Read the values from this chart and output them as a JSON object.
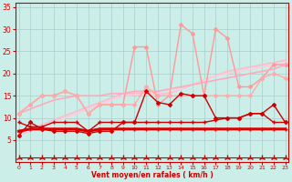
{
  "xlabel": "Vent moyen/en rafales ( km/h )",
  "background_color": "#cceee8",
  "grid_color": "#aacccc",
  "x": [
    0,
    1,
    2,
    3,
    4,
    5,
    6,
    7,
    8,
    9,
    10,
    11,
    12,
    13,
    14,
    15,
    16,
    17,
    18,
    19,
    20,
    21,
    22,
    23
  ],
  "lines": [
    {
      "y": [
        6.5,
        7.5,
        8.5,
        9.5,
        10.5,
        11.5,
        12.5,
        13.5,
        14.5,
        15.5,
        15.5,
        15.5,
        15.5,
        15.5,
        16.5,
        17.5,
        18.5,
        19.5,
        20.5,
        21.0,
        21.5,
        22.0,
        22.5,
        23.0
      ],
      "color": "#ffbbcc",
      "lw": 1.2,
      "marker": null,
      "ms": 0
    },
    {
      "y": [
        6.0,
        7.0,
        8.0,
        9.0,
        10.0,
        11.0,
        12.0,
        13.0,
        14.0,
        15.0,
        15.2,
        15.4,
        15.6,
        15.8,
        16.5,
        17.5,
        18.5,
        19.5,
        20.0,
        20.5,
        21.0,
        21.5,
        22.0,
        22.5
      ],
      "color": "#ffccdd",
      "lw": 1.2,
      "marker": null,
      "ms": 0
    },
    {
      "y": [
        11,
        13,
        15,
        15,
        16,
        15,
        11,
        13,
        13,
        13,
        26,
        26,
        13,
        15,
        31,
        29,
        15,
        30,
        28,
        17,
        17,
        19,
        22,
        22
      ],
      "color": "#ff9999",
      "lw": 1.0,
      "marker": "D",
      "ms": 2
    },
    {
      "y": [
        11,
        12,
        13,
        14,
        14.5,
        15,
        15,
        15,
        15.5,
        15.5,
        16,
        16,
        16,
        16.5,
        17,
        17.5,
        18,
        18.5,
        19,
        19.5,
        20,
        20.5,
        21,
        22
      ],
      "color": "#ffaabb",
      "lw": 1.2,
      "marker": null,
      "ms": 0
    },
    {
      "y": [
        11,
        13,
        15,
        15,
        16,
        15,
        11,
        13,
        13,
        13,
        13,
        17,
        15,
        15,
        15,
        15,
        15,
        15,
        15,
        15,
        15,
        19,
        20,
        19
      ],
      "color": "#ffaaaa",
      "lw": 1.0,
      "marker": "D",
      "ms": 2
    },
    {
      "y": [
        6,
        9,
        7.5,
        7,
        7,
        7,
        6.5,
        7,
        7,
        9,
        9,
        16,
        13.5,
        13,
        15.5,
        15,
        15,
        10,
        10,
        10,
        11,
        11,
        13,
        9
      ],
      "color": "#cc0000",
      "lw": 1.0,
      "marker": "D",
      "ms": 2
    },
    {
      "y": [
        7,
        7.5,
        7.5,
        7.5,
        7.5,
        7.5,
        7,
        7.5,
        7.5,
        7.5,
        7.5,
        7.5,
        7.5,
        7.5,
        7.5,
        7.5,
        7.5,
        7.5,
        7.5,
        7.5,
        7.5,
        7.5,
        7.5,
        7.5
      ],
      "color": "#dd0000",
      "lw": 2.2,
      "marker": "+",
      "ms": 3
    },
    {
      "y": [
        9,
        8,
        8,
        9,
        9,
        9,
        7,
        9,
        9,
        9,
        9,
        9,
        9,
        9,
        9,
        9,
        9,
        9.5,
        10,
        10,
        11,
        11,
        9,
        9
      ],
      "color": "#cc0000",
      "lw": 1.0,
      "marker": "+",
      "ms": 3
    },
    {
      "y": [
        1,
        1,
        1,
        1,
        1,
        1,
        1,
        1,
        1,
        1,
        1,
        1,
        1,
        1,
        1,
        1,
        1,
        1,
        1,
        1,
        1,
        1,
        1,
        1
      ],
      "color": "#cc0000",
      "lw": 0.8,
      "marker": "2",
      "ms": 5
    }
  ],
  "xlim": [
    -0.3,
    23.3
  ],
  "ylim": [
    0,
    36
  ],
  "yticks": [
    5,
    10,
    15,
    20,
    25,
    30,
    35
  ],
  "xticks": [
    0,
    1,
    2,
    3,
    4,
    5,
    6,
    7,
    8,
    9,
    10,
    11,
    12,
    13,
    14,
    15,
    16,
    17,
    18,
    19,
    20,
    21,
    22,
    23
  ]
}
